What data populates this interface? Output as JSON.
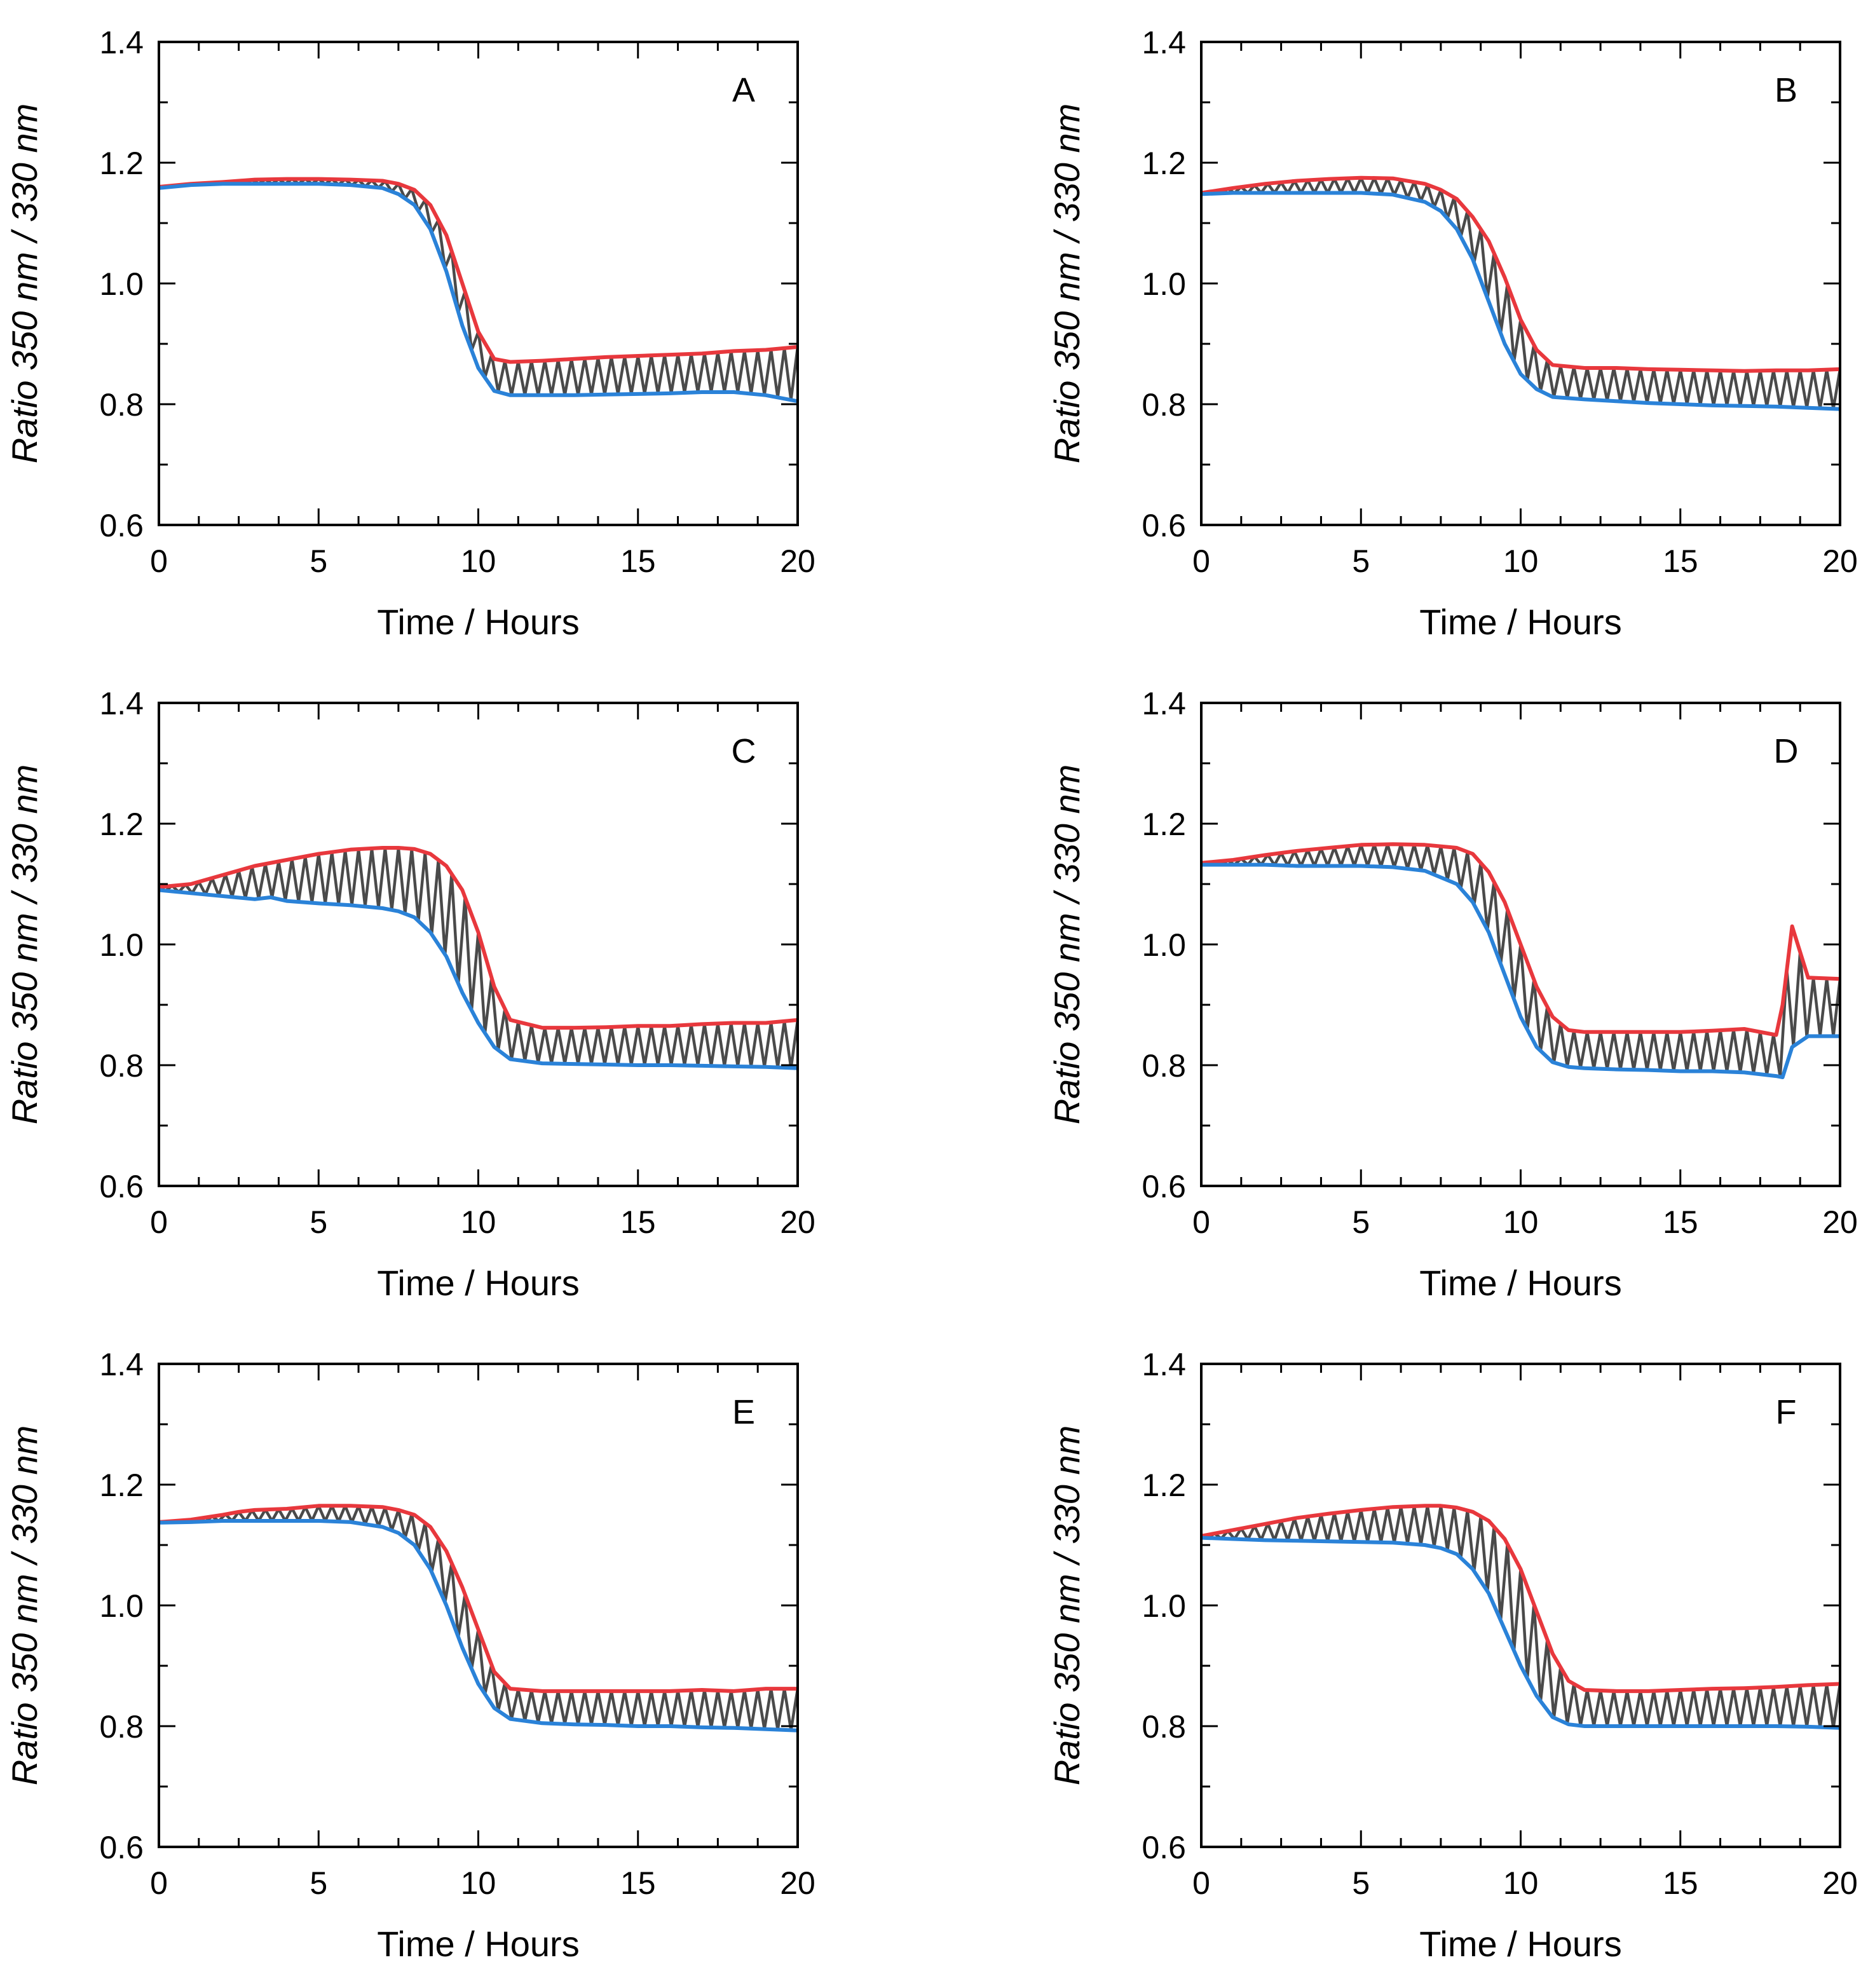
{
  "figure": {
    "panel_count": 6,
    "colors": {
      "oscillation": "#4a4a4a",
      "upper_envelope": "#e8383d",
      "lower_envelope": "#2a82d8",
      "axes": "#000000"
    }
  },
  "chart_data": [
    {
      "type": "line",
      "panel": "A",
      "xlabel": "Time / Hours",
      "ylabel": "Ratio 350 nm / 330 nm",
      "xlim": [
        0,
        20
      ],
      "ylim": [
        0.6,
        1.4
      ],
      "xticks": [
        "0",
        "5",
        "10",
        "15",
        "20"
      ],
      "yticks": [
        "0.6",
        "0.8",
        "1.0",
        "1.2",
        "1.4"
      ],
      "osc_cycles": 48,
      "series": [
        {
          "name": "upper envelope",
          "color": "#e8383d",
          "x": [
            0,
            1,
            2,
            3,
            4,
            5,
            6,
            7,
            7.5,
            8,
            8.5,
            9,
            9.5,
            10,
            10.5,
            11,
            12,
            13,
            14,
            15,
            16,
            17,
            18,
            19,
            20
          ],
          "y": [
            1.16,
            1.165,
            1.168,
            1.172,
            1.173,
            1.173,
            1.172,
            1.17,
            1.165,
            1.155,
            1.13,
            1.08,
            1.0,
            0.92,
            0.875,
            0.87,
            0.872,
            0.875,
            0.878,
            0.88,
            0.882,
            0.884,
            0.888,
            0.89,
            0.895
          ]
        },
        {
          "name": "lower envelope",
          "color": "#2a82d8",
          "x": [
            0,
            1,
            2,
            3,
            4,
            5,
            6,
            7,
            7.5,
            8,
            8.5,
            9,
            9.5,
            10,
            10.5,
            11,
            12,
            13,
            14,
            15,
            16,
            17,
            18,
            19,
            20
          ],
          "y": [
            1.158,
            1.163,
            1.165,
            1.165,
            1.165,
            1.165,
            1.163,
            1.158,
            1.148,
            1.13,
            1.09,
            1.02,
            0.93,
            0.86,
            0.822,
            0.815,
            0.815,
            0.815,
            0.816,
            0.817,
            0.818,
            0.82,
            0.82,
            0.815,
            0.805
          ]
        }
      ]
    },
    {
      "type": "line",
      "panel": "B",
      "xlabel": "Time / Hours",
      "ylabel": "Ratio 350 nm / 330 nm",
      "xlim": [
        0,
        20
      ],
      "ylim": [
        0.6,
        1.4
      ],
      "xticks": [
        "0",
        "5",
        "10",
        "15",
        "20"
      ],
      "yticks": [
        "0.6",
        "0.8",
        "1.0",
        "1.2",
        "1.4"
      ],
      "osc_cycles": 48,
      "series": [
        {
          "name": "upper envelope",
          "color": "#e8383d",
          "x": [
            0,
            1,
            2,
            3,
            4,
            5,
            6,
            7,
            7.5,
            8,
            8.5,
            9,
            9.5,
            10,
            10.5,
            11,
            12,
            13,
            14,
            15,
            16,
            17,
            18,
            19,
            20
          ],
          "y": [
            1.15,
            1.158,
            1.165,
            1.17,
            1.173,
            1.175,
            1.174,
            1.165,
            1.155,
            1.14,
            1.11,
            1.07,
            1.01,
            0.94,
            0.89,
            0.865,
            0.86,
            0.86,
            0.858,
            0.857,
            0.856,
            0.855,
            0.856,
            0.856,
            0.858
          ]
        },
        {
          "name": "lower envelope",
          "color": "#2a82d8",
          "x": [
            0,
            1,
            2,
            3,
            4,
            5,
            6,
            7,
            7.5,
            8,
            8.5,
            9,
            9.5,
            10,
            10.5,
            11,
            12,
            13,
            14,
            15,
            16,
            17,
            18,
            19,
            20
          ],
          "y": [
            1.148,
            1.15,
            1.15,
            1.15,
            1.15,
            1.15,
            1.147,
            1.135,
            1.12,
            1.09,
            1.04,
            0.97,
            0.9,
            0.85,
            0.825,
            0.812,
            0.808,
            0.805,
            0.802,
            0.8,
            0.798,
            0.797,
            0.796,
            0.794,
            0.792
          ]
        }
      ]
    },
    {
      "type": "line",
      "panel": "C",
      "xlabel": "Time / Hours",
      "ylabel": "Ratio 350 nm / 330 nm",
      "xlim": [
        0,
        20
      ],
      "ylim": [
        0.6,
        1.4
      ],
      "xticks": [
        "0",
        "5",
        "10",
        "15",
        "20"
      ],
      "yticks": [
        "0.6",
        "0.8",
        "1.0",
        "1.2",
        "1.4"
      ],
      "osc_cycles": 48,
      "series": [
        {
          "name": "upper envelope",
          "color": "#e8383d",
          "x": [
            0,
            1,
            2,
            3,
            4,
            5,
            6,
            7,
            7.5,
            8,
            8.5,
            9,
            9.5,
            10,
            10.5,
            11,
            12,
            13,
            14,
            15,
            16,
            17,
            18,
            19,
            20
          ],
          "y": [
            1.095,
            1.1,
            1.115,
            1.13,
            1.14,
            1.15,
            1.157,
            1.16,
            1.16,
            1.158,
            1.15,
            1.13,
            1.09,
            1.02,
            0.93,
            0.875,
            0.862,
            0.862,
            0.863,
            0.865,
            0.865,
            0.868,
            0.87,
            0.87,
            0.875
          ]
        },
        {
          "name": "lower envelope",
          "color": "#2a82d8",
          "x": [
            0,
            1,
            2,
            3,
            3.5,
            4,
            5,
            6,
            7,
            7.5,
            8,
            8.5,
            9,
            9.5,
            10,
            10.5,
            11,
            12,
            13,
            14,
            15,
            16,
            17,
            18,
            19,
            20
          ],
          "y": [
            1.09,
            1.085,
            1.08,
            1.075,
            1.078,
            1.072,
            1.068,
            1.065,
            1.06,
            1.055,
            1.045,
            1.02,
            0.98,
            0.92,
            0.87,
            0.83,
            0.81,
            0.803,
            0.802,
            0.801,
            0.8,
            0.8,
            0.799,
            0.798,
            0.797,
            0.795
          ]
        }
      ]
    },
    {
      "type": "line",
      "panel": "D",
      "xlabel": "Time / Hours",
      "ylabel": "Ratio 350 nm / 330 nm",
      "xlim": [
        0,
        20
      ],
      "ylim": [
        0.6,
        1.4
      ],
      "xticks": [
        "0",
        "5",
        "10",
        "15",
        "20"
      ],
      "yticks": [
        "0.6",
        "0.8",
        "1.0",
        "1.2",
        "1.4"
      ],
      "osc_cycles": 48,
      "series": [
        {
          "name": "upper envelope",
          "color": "#e8383d",
          "x": [
            0,
            1,
            2,
            3,
            4,
            5,
            6,
            7,
            8,
            8.5,
            9,
            9.5,
            10,
            10.5,
            11,
            11.5,
            12,
            13,
            14,
            15,
            16,
            17,
            18,
            18.2,
            18.5,
            19,
            20
          ],
          "y": [
            1.135,
            1.14,
            1.148,
            1.155,
            1.16,
            1.165,
            1.166,
            1.165,
            1.16,
            1.15,
            1.12,
            1.07,
            1.0,
            0.93,
            0.88,
            0.858,
            0.855,
            0.855,
            0.855,
            0.855,
            0.857,
            0.86,
            0.85,
            0.9,
            1.03,
            0.945,
            0.943
          ]
        },
        {
          "name": "lower envelope",
          "color": "#2a82d8",
          "x": [
            0,
            1,
            2,
            3,
            4,
            5,
            6,
            7,
            8,
            8.5,
            9,
            9.5,
            10,
            10.5,
            11,
            11.5,
            12,
            13,
            14,
            15,
            16,
            17,
            18,
            18.2,
            18.5,
            19,
            20
          ],
          "y": [
            1.132,
            1.132,
            1.132,
            1.13,
            1.13,
            1.13,
            1.128,
            1.122,
            1.1,
            1.07,
            1.02,
            0.95,
            0.88,
            0.83,
            0.805,
            0.797,
            0.795,
            0.793,
            0.792,
            0.79,
            0.79,
            0.788,
            0.782,
            0.78,
            0.83,
            0.848,
            0.848
          ]
        }
      ]
    },
    {
      "type": "line",
      "panel": "E",
      "xlabel": "Time / Hours",
      "ylabel": "Ratio 350 nm / 330 nm",
      "xlim": [
        0,
        20
      ],
      "ylim": [
        0.6,
        1.4
      ],
      "xticks": [
        "0",
        "5",
        "10",
        "15",
        "20"
      ],
      "yticks": [
        "0.6",
        "0.8",
        "1.0",
        "1.2",
        "1.4"
      ],
      "osc_cycles": 48,
      "series": [
        {
          "name": "upper envelope",
          "color": "#e8383d",
          "x": [
            0,
            1,
            2,
            2.5,
            3,
            4,
            5,
            6,
            7,
            7.5,
            8,
            8.5,
            9,
            9.5,
            10,
            10.5,
            11,
            12,
            13,
            14,
            15,
            16,
            17,
            18,
            19,
            20
          ],
          "y": [
            1.138,
            1.142,
            1.15,
            1.155,
            1.158,
            1.16,
            1.165,
            1.165,
            1.163,
            1.158,
            1.15,
            1.13,
            1.09,
            1.03,
            0.96,
            0.89,
            0.862,
            0.858,
            0.858,
            0.858,
            0.858,
            0.858,
            0.86,
            0.858,
            0.862,
            0.862
          ]
        },
        {
          "name": "lower envelope",
          "color": "#2a82d8",
          "x": [
            0,
            1,
            2,
            3,
            4,
            5,
            6,
            7,
            7.5,
            8,
            8.5,
            9,
            9.5,
            10,
            10.5,
            11,
            12,
            13,
            14,
            15,
            16,
            17,
            18,
            19,
            20
          ],
          "y": [
            1.137,
            1.138,
            1.14,
            1.14,
            1.14,
            1.14,
            1.138,
            1.13,
            1.12,
            1.1,
            1.06,
            1.0,
            0.93,
            0.87,
            0.83,
            0.812,
            0.805,
            0.803,
            0.802,
            0.8,
            0.8,
            0.798,
            0.797,
            0.795,
            0.793
          ]
        }
      ]
    },
    {
      "type": "line",
      "panel": "F",
      "xlabel": "Time / Hours",
      "ylabel": "Ratio 350 nm / 330 nm",
      "xlim": [
        0,
        20
      ],
      "ylim": [
        0.6,
        1.4
      ],
      "xticks": [
        "0",
        "5",
        "10",
        "15",
        "20"
      ],
      "yticks": [
        "0.6",
        "0.8",
        "1.0",
        "1.2",
        "1.4"
      ],
      "osc_cycles": 48,
      "series": [
        {
          "name": "upper envelope",
          "color": "#e8383d",
          "x": [
            0,
            1,
            2,
            3,
            4,
            5,
            6,
            7,
            7.5,
            8,
            8.5,
            9,
            9.5,
            10,
            10.5,
            11,
            11.5,
            12,
            13,
            14,
            15,
            16,
            17,
            18,
            19,
            20
          ],
          "y": [
            1.115,
            1.125,
            1.135,
            1.145,
            1.152,
            1.158,
            1.163,
            1.165,
            1.165,
            1.162,
            1.155,
            1.14,
            1.11,
            1.06,
            0.99,
            0.92,
            0.875,
            0.86,
            0.858,
            0.858,
            0.86,
            0.862,
            0.863,
            0.865,
            0.868,
            0.87
          ]
        },
        {
          "name": "lower envelope",
          "color": "#2a82d8",
          "x": [
            0,
            1,
            2,
            3,
            4,
            5,
            6,
            7,
            7.5,
            8,
            8.5,
            9,
            9.5,
            10,
            10.5,
            11,
            11.5,
            12,
            13,
            14,
            15,
            16,
            17,
            18,
            19,
            20
          ],
          "y": [
            1.112,
            1.11,
            1.108,
            1.107,
            1.106,
            1.105,
            1.104,
            1.1,
            1.095,
            1.085,
            1.06,
            1.02,
            0.96,
            0.9,
            0.85,
            0.815,
            0.803,
            0.8,
            0.8,
            0.8,
            0.8,
            0.8,
            0.8,
            0.8,
            0.799,
            0.797
          ]
        }
      ]
    }
  ]
}
